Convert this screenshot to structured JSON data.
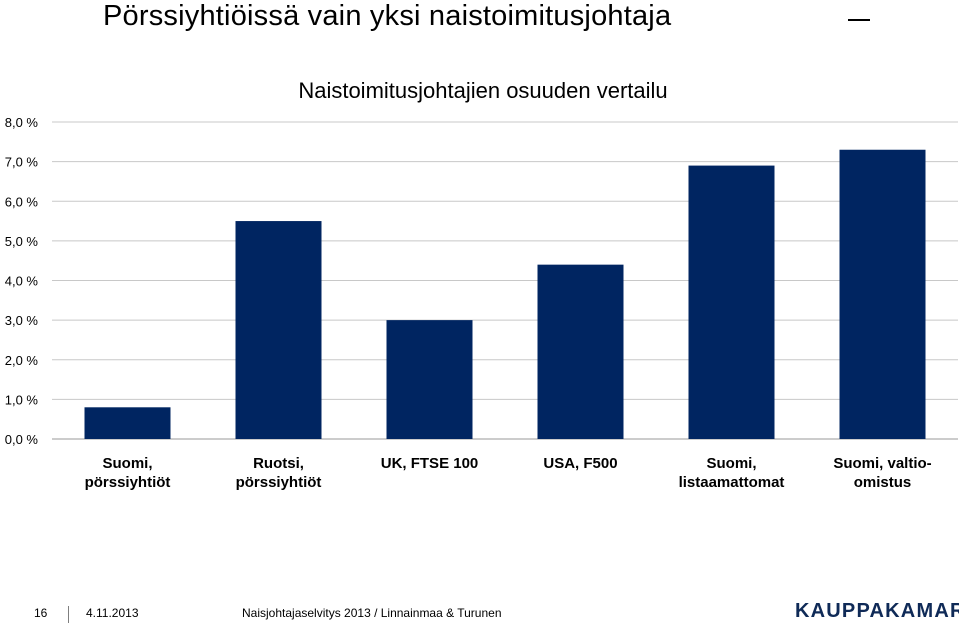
{
  "slide": {
    "title": "Pörssiyhtiöissä vain yksi naistoimitusjohtaja"
  },
  "chart_data": {
    "type": "bar",
    "title": "Naistoimitusjohtajien osuuden vertailu",
    "categories": [
      [
        "Suomi,",
        "pörssiyhtiöt"
      ],
      [
        "Ruotsi,",
        "pörssiyhtiöt"
      ],
      [
        "UK, FTSE 100"
      ],
      [
        "USA, F500"
      ],
      [
        "Suomi,",
        "listaamattomat"
      ],
      [
        "Suomi, valtio-",
        "omistus"
      ]
    ],
    "values": [
      0.8,
      5.5,
      3.0,
      4.4,
      6.9,
      7.3
    ],
    "ylim": [
      0,
      8
    ],
    "yticks": [
      "0,0 %",
      "1,0 %",
      "2,0 %",
      "3,0 %",
      "4,0 %",
      "5,0 %",
      "6,0 %",
      "7,0 %",
      "8,0 %"
    ],
    "grid": true,
    "bar_color": "#002561",
    "grid_color": "#c8c8c8"
  },
  "footer": {
    "page_number": "16",
    "date": "4.11.2013",
    "source": "Naisjohtajaselvitys 2013 / Linnainmaa & Turunen",
    "logo": "KAUPPAKAMARI"
  }
}
